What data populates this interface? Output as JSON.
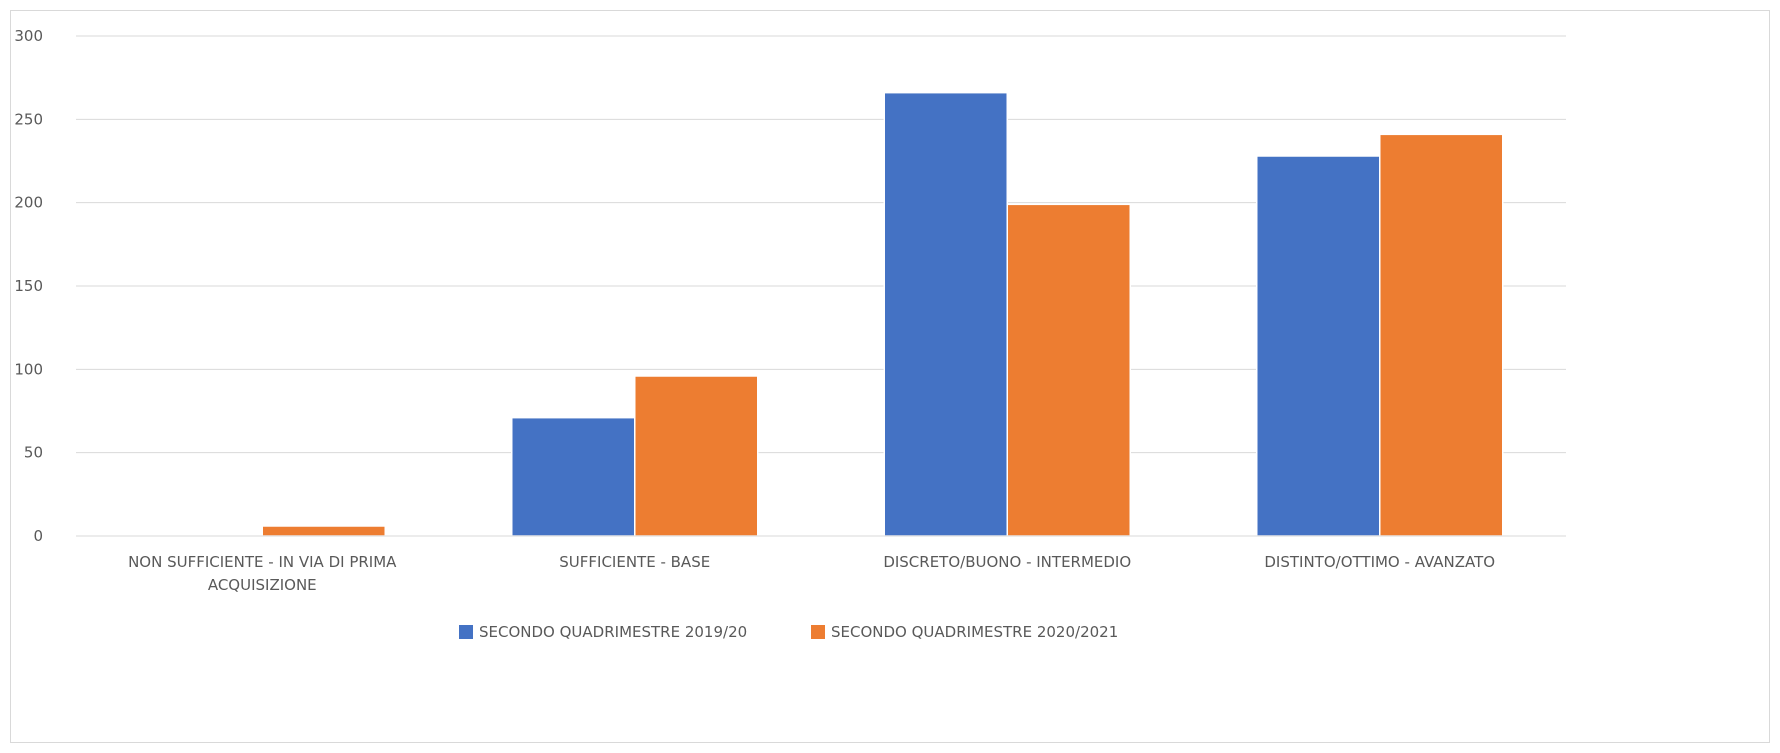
{
  "chart_data": {
    "type": "bar",
    "categories": [
      "NON SUFFICIENTE - IN VIA DI PRIMA ACQUISIZIONE",
      "SUFFICIENTE - BASE",
      "DISCRETO/BUONO - INTERMEDIO",
      "DISTINTO/OTTIMO - AVANZATO"
    ],
    "category_lines": [
      [
        "NON SUFFICIENTE - IN VIA DI PRIMA",
        "ACQUISIZIONE"
      ],
      [
        "SUFFICIENTE - BASE"
      ],
      [
        "DISCRETO/BUONO - INTERMEDIO"
      ],
      [
        "DISTINTO/OTTIMO - AVANZATO"
      ]
    ],
    "series": [
      {
        "name": "SECONDO QUADRIMESTRE 2019/20",
        "color": "#4472c4",
        "values": [
          0,
          71,
          266,
          228
        ]
      },
      {
        "name": "SECONDO QUADRIMESTRE 2020/2021",
        "color": "#ed7d31",
        "values": [
          6,
          96,
          199,
          241
        ]
      }
    ],
    "ylim": [
      0,
      300
    ],
    "yticks": [
      "0",
      "50",
      "100",
      "150",
      "200",
      "250",
      "300"
    ],
    "grid": true,
    "legend": "bottom",
    "title": "",
    "xlabel": "",
    "ylabel": ""
  }
}
